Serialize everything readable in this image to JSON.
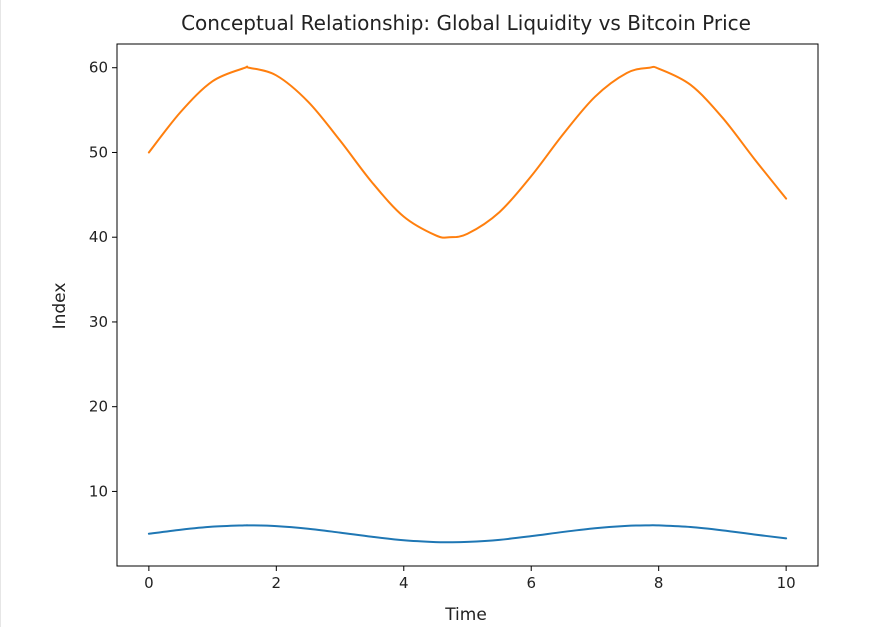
{
  "chart_data": {
    "type": "line",
    "title": "Conceptual Relationship: Global Liquidity vs Bitcoin Price",
    "xlabel": "Time",
    "ylabel": "Index",
    "xlim": [
      -0.5,
      10.5
    ],
    "ylim": [
      1.2,
      62.8
    ],
    "xticks": [
      0,
      2,
      4,
      6,
      8,
      10
    ],
    "yticks": [
      10,
      20,
      30,
      40,
      50,
      60
    ],
    "grid": false,
    "legend": "none",
    "series": [
      {
        "color": "#1f77b4",
        "formula": "5 + sin(x)",
        "x": [
          0,
          0.5,
          1,
          1.5,
          1.571,
          2,
          2.5,
          3,
          3.5,
          4,
          4.5,
          4.712,
          5,
          5.5,
          6,
          6.5,
          7,
          7.5,
          7.854,
          8,
          8.5,
          9,
          9.5,
          10
        ],
        "y": [
          5.0,
          5.48,
          5.84,
          6.0,
          6.0,
          5.91,
          5.6,
          5.14,
          4.65,
          4.24,
          4.02,
          4.0,
          4.04,
          4.29,
          4.72,
          5.22,
          5.66,
          5.94,
          6.0,
          5.99,
          5.8,
          5.41,
          4.92,
          4.46
        ]
      },
      {
        "color": "#ff7f0e",
        "formula": "50 + 10*sin(x)",
        "x": [
          0,
          0.5,
          1,
          1.5,
          1.571,
          2,
          2.5,
          3,
          3.5,
          4,
          4.5,
          4.712,
          5,
          5.5,
          6,
          6.5,
          7,
          7.5,
          7.854,
          8,
          8.5,
          9,
          9.5,
          10
        ],
        "y": [
          50.0,
          54.79,
          58.41,
          59.97,
          60.0,
          59.09,
          55.98,
          51.41,
          46.49,
          42.43,
          40.22,
          40.0,
          40.41,
          42.95,
          47.21,
          52.15,
          56.57,
          59.38,
          60.0,
          59.89,
          57.98,
          54.12,
          49.25,
          44.56
        ]
      }
    ]
  }
}
